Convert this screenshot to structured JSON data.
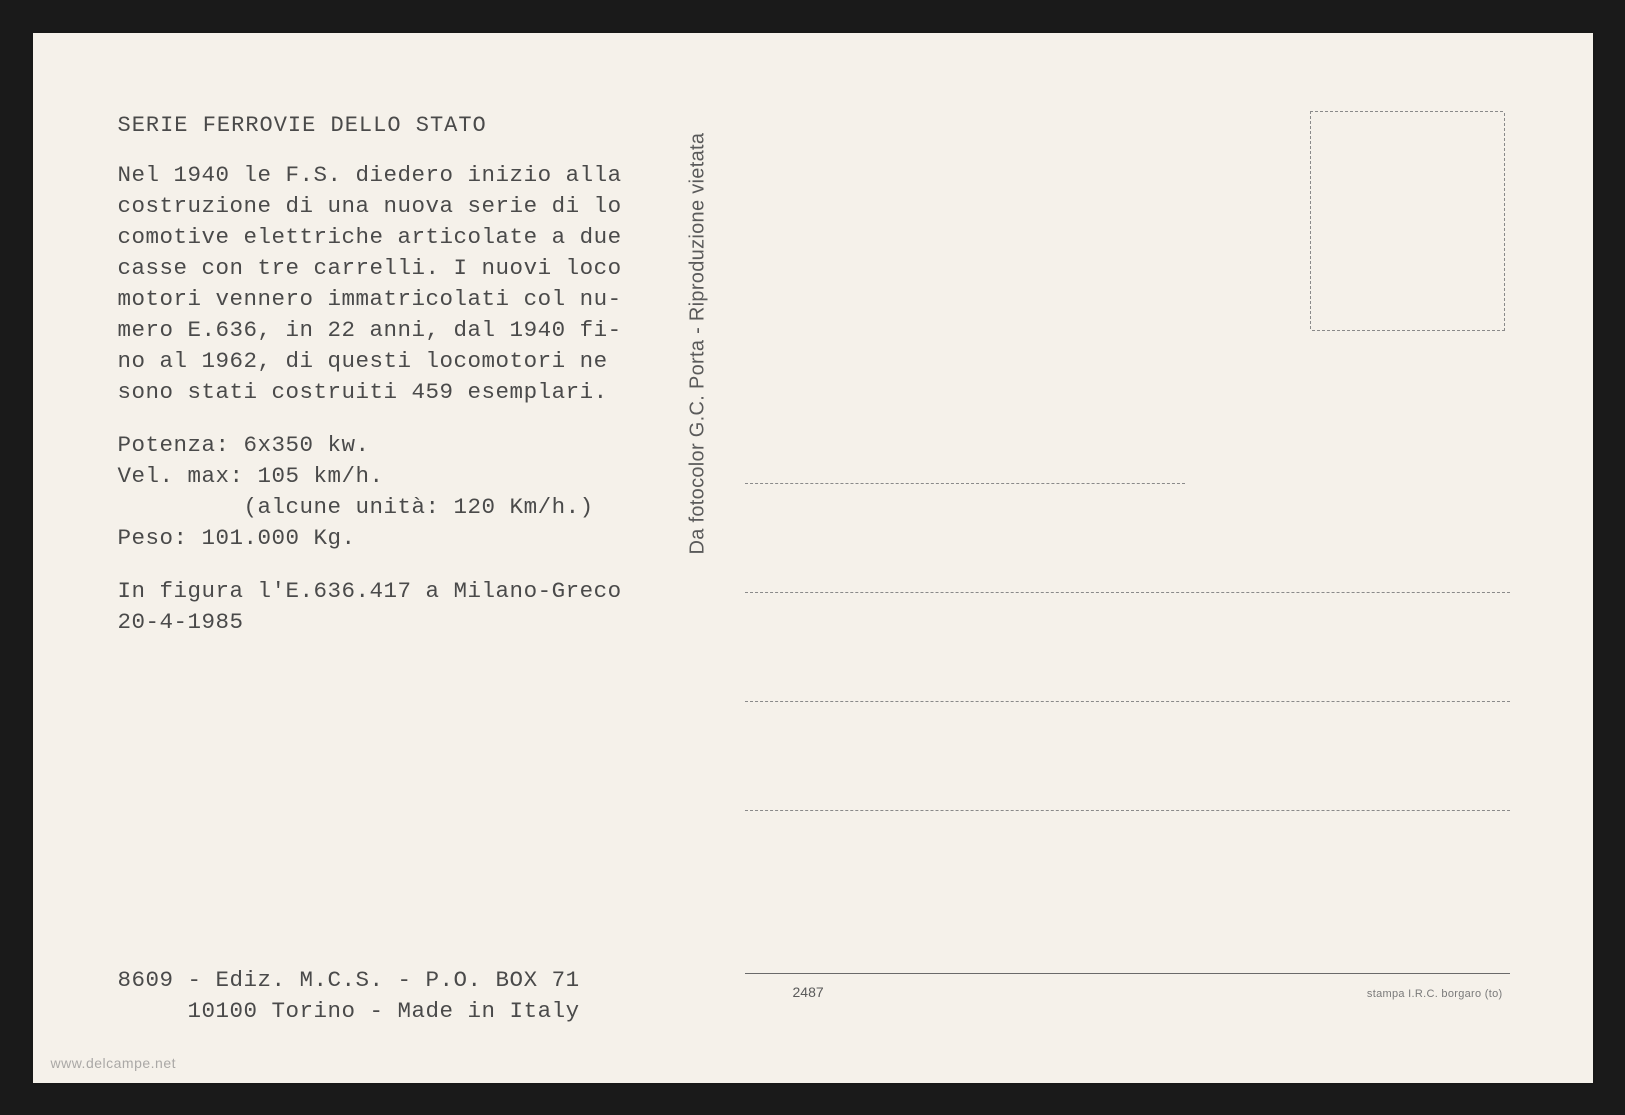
{
  "postcard": {
    "title": "SERIE FERROVIE DELLO STATO",
    "description": "Nel 1940 le F.S. diedero inizio alla costruzione di una nuova serie di lo comotive elettriche articolate a due casse con tre carrelli. I nuovi loco motori vennero immatricolati col nu- mero E.636, in 22 anni, dal 1940 fi- no al 1962, di questi locomotori ne sono stati costruiti 459 esemplari.",
    "specs": {
      "line1": "Potenza: 6x350 kw.",
      "line2": "Vel. max: 105 km/h.",
      "line3": "         (alcune unità: 120 Km/h.)",
      "line4": "Peso: 101.000 Kg."
    },
    "caption": {
      "line1": "In figura l'E.636.417 a Milano-Greco",
      "line2": "20-4-1985"
    },
    "publisher": {
      "line1": "8609 - Ediz. M.C.S. - P.O. BOX 71",
      "line2": "     10100 Torino - Made in Italy"
    },
    "divider_text": "Da fotocolor G.C. Porta - Riproduzione vietata",
    "serial": "2487",
    "printer": "stampa I.R.C. borgaro (to)",
    "watermark": "www.delcampe.net",
    "colors": {
      "background": "#f5f1ea",
      "text": "#4a4a4a",
      "dashed_line": "#8a8a8a",
      "solid_line": "#6a6a6a"
    }
  }
}
